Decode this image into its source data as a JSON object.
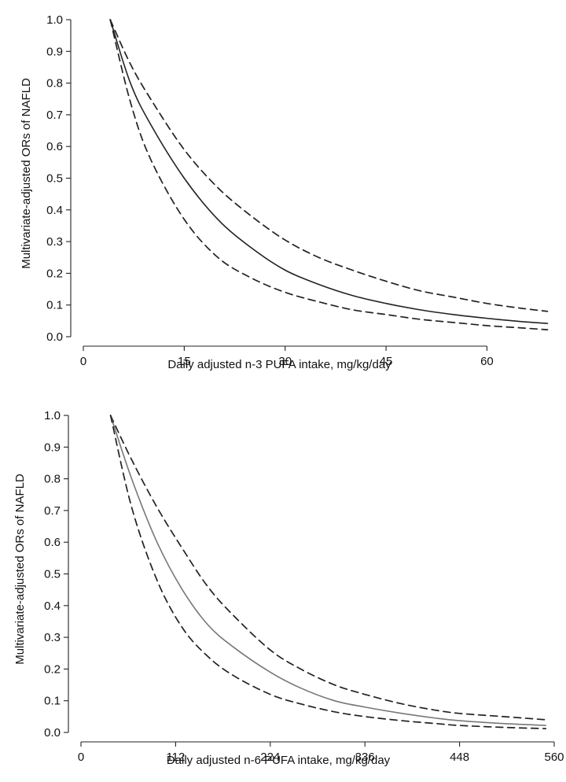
{
  "chart_data": [
    {
      "type": "line",
      "xlabel": "Daily adjusted n-3 PUFA intake, mg/kg/day",
      "ylabel": "Multivariate-adjusted ORs of NAFLD",
      "xlim": [
        0,
        70
      ],
      "ylim": [
        0,
        1.0
      ],
      "xticks": [
        "0",
        "15",
        "30",
        "45",
        "60"
      ],
      "xtick_values": [
        0,
        15,
        30,
        45,
        60
      ],
      "yticks": [
        "0.0",
        "0.1",
        "0.2",
        "0.3",
        "0.4",
        "0.5",
        "0.6",
        "0.7",
        "0.8",
        "0.9",
        "1.0"
      ],
      "ytick_values": [
        0,
        0.1,
        0.2,
        0.3,
        0.4,
        0.5,
        0.6,
        0.7,
        0.8,
        0.9,
        1.0
      ],
      "grid": false,
      "series": [
        {
          "style": "dashed",
          "color": "#222222",
          "x": [
            4,
            7,
            10,
            15,
            20,
            25,
            30,
            35,
            40,
            45,
            50,
            55,
            60,
            65,
            69
          ],
          "y": [
            1.0,
            0.86,
            0.75,
            0.59,
            0.47,
            0.38,
            0.305,
            0.25,
            0.21,
            0.175,
            0.145,
            0.125,
            0.105,
            0.09,
            0.08
          ]
        },
        {
          "style": "solid",
          "color": "#222222",
          "x": [
            4,
            7,
            10,
            15,
            20,
            25,
            30,
            35,
            40,
            45,
            50,
            55,
            60,
            65,
            69
          ],
          "y": [
            1.0,
            0.8,
            0.67,
            0.5,
            0.37,
            0.28,
            0.21,
            0.165,
            0.13,
            0.105,
            0.085,
            0.07,
            0.058,
            0.048,
            0.042
          ]
        },
        {
          "style": "dashed",
          "color": "#222222",
          "x": [
            4,
            7,
            10,
            15,
            20,
            25,
            30,
            35,
            40,
            45,
            50,
            55,
            60,
            65,
            69
          ],
          "y": [
            1.0,
            0.74,
            0.56,
            0.37,
            0.25,
            0.185,
            0.14,
            0.11,
            0.085,
            0.07,
            0.055,
            0.045,
            0.035,
            0.028,
            0.022
          ]
        }
      ]
    },
    {
      "type": "line",
      "xlabel": "Daily adjusted n-6 PUFA intake, mg/kg/day",
      "ylabel": "Multivariate-adjusted ORs of NAFLD",
      "xlim": [
        0,
        560
      ],
      "ylim": [
        0,
        1.0
      ],
      "xticks": [
        "0",
        "112",
        "224",
        "336",
        "448",
        "560"
      ],
      "xtick_values": [
        0,
        112,
        224,
        336,
        448,
        560
      ],
      "yticks": [
        "0.0",
        "0.1",
        "0.2",
        "0.3",
        "0.4",
        "0.5",
        "0.6",
        "0.7",
        "0.8",
        "0.9",
        "1.0"
      ],
      "ytick_values": [
        0,
        0.1,
        0.2,
        0.3,
        0.4,
        0.5,
        0.6,
        0.7,
        0.8,
        0.9,
        1.0
      ],
      "grid": false,
      "series": [
        {
          "style": "dashed",
          "color": "#222222",
          "x": [
            35,
            60,
            90,
            120,
            150,
            180,
            224,
            260,
            300,
            336,
            380,
            420,
            448,
            500,
            550
          ],
          "y": [
            1.0,
            0.86,
            0.71,
            0.58,
            0.46,
            0.37,
            0.26,
            0.2,
            0.15,
            0.12,
            0.09,
            0.07,
            0.06,
            0.05,
            0.04
          ]
        },
        {
          "style": "solid",
          "color": "#777777",
          "x": [
            35,
            60,
            90,
            120,
            150,
            180,
            224,
            260,
            300,
            336,
            380,
            420,
            448,
            500,
            550
          ],
          "y": [
            1.0,
            0.8,
            0.6,
            0.45,
            0.34,
            0.27,
            0.19,
            0.14,
            0.1,
            0.08,
            0.06,
            0.045,
            0.037,
            0.028,
            0.022
          ]
        },
        {
          "style": "dashed",
          "color": "#222222",
          "x": [
            35,
            60,
            90,
            120,
            150,
            180,
            224,
            260,
            300,
            336,
            380,
            420,
            448,
            500,
            550
          ],
          "y": [
            1.0,
            0.71,
            0.48,
            0.33,
            0.24,
            0.18,
            0.12,
            0.09,
            0.065,
            0.05,
            0.037,
            0.028,
            0.022,
            0.016,
            0.012
          ]
        }
      ]
    }
  ]
}
